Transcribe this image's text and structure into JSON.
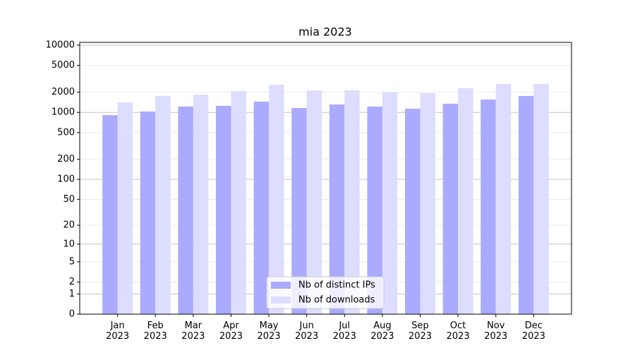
{
  "chart_data": {
    "type": "bar",
    "title": "mia 2023",
    "categories": [
      "Jan\n2023",
      "Feb\n2023",
      "Mar\n2023",
      "Apr\n2023",
      "May\n2023",
      "Jun\n2023",
      "Jul\n2023",
      "Aug\n2023",
      "Sep\n2023",
      "Oct\n2023",
      "Nov\n2023",
      "Dec\n2023"
    ],
    "series": [
      {
        "name": "Nb of distinct IPs",
        "color": "#aaaaff",
        "values": [
          910,
          1030,
          1220,
          1250,
          1445,
          1160,
          1310,
          1220,
          1135,
          1345,
          1555,
          1755
        ]
      },
      {
        "name": "Nb of downloads",
        "color": "#ddddff",
        "values": [
          1410,
          1755,
          1840,
          2080,
          2580,
          2130,
          2130,
          1980,
          1930,
          2290,
          2650,
          2650
        ]
      }
    ],
    "yscale": "symlog",
    "ylim": [
      0,
      11000
    ],
    "yticks": [
      0,
      1,
      2,
      5,
      10,
      20,
      50,
      100,
      200,
      500,
      1000,
      2000,
      5000,
      10000
    ],
    "grid": true,
    "legend": "lower center"
  }
}
